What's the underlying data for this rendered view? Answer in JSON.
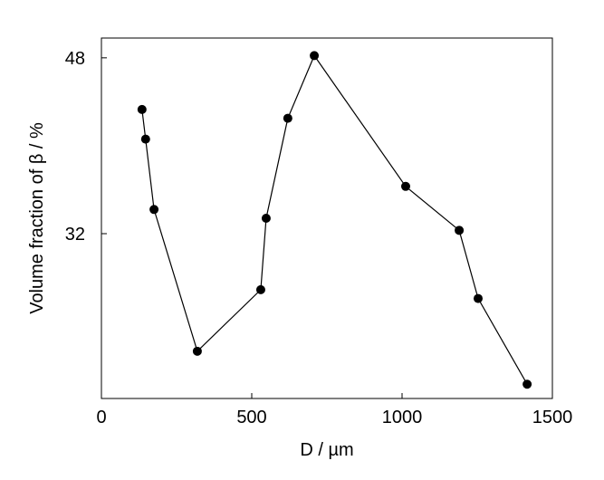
{
  "chart_data": {
    "type": "line",
    "x_label": "D / µm",
    "y_label": "Volume fraction of β / %",
    "x": [
      135,
      147,
      175,
      319,
      530,
      548,
      620,
      708,
      1012,
      1190,
      1253,
      1416
    ],
    "series": [
      {
        "color": "#000000",
        "values": [
          43.3,
          40.6,
          34.2,
          21.3,
          26.9,
          33.4,
          42.5,
          48.2,
          36.3,
          32.3,
          26.1,
          18.3
        ]
      }
    ],
    "xlim": [
      0,
      1500
    ],
    "xticks": [
      0,
      500,
      1000,
      1500
    ],
    "ylim": [
      17,
      49.8
    ],
    "yticks": [
      32,
      48
    ]
  }
}
